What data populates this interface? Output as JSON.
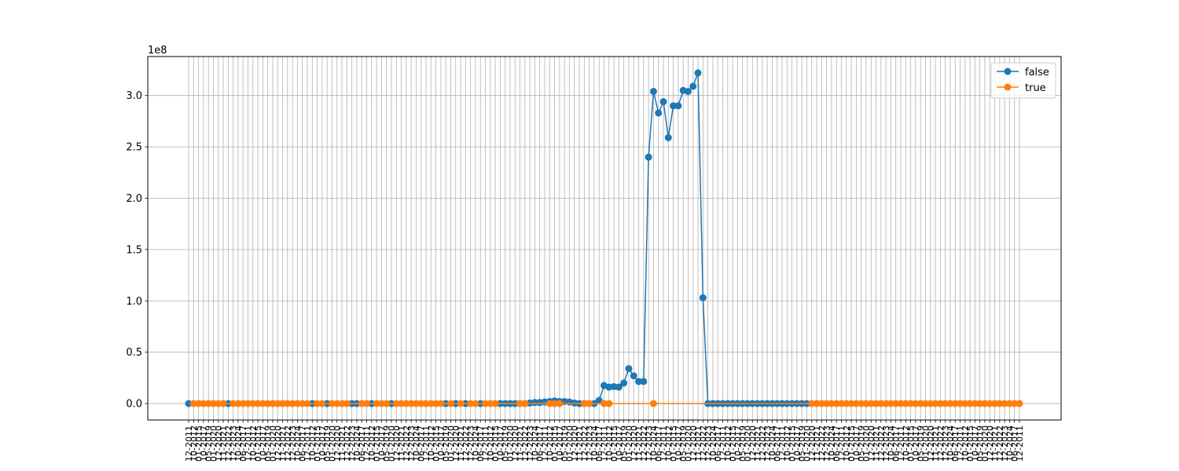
{
  "chart_data": {
    "type": "line",
    "title": "",
    "xlabel": "",
    "ylabel": "",
    "y_scale_label": "1e8",
    "y_scale": 100000000,
    "ylim": [
      -0.16,
      3.38
    ],
    "yticks": [
      0.0,
      0.5,
      1.0,
      1.5,
      2.0,
      2.5,
      3.0
    ],
    "ytick_labels": [
      "0.0",
      "0.5",
      "1.0",
      "1.5",
      "2.0",
      "2.5",
      "3.0"
    ],
    "grid": true,
    "legend_position": "top-right",
    "x_tick_count": 169,
    "x_label_samples": [
      "12-2011",
      "10-2012",
      "01-2015",
      "10-2017",
      "05-2019",
      "01-2020",
      "12-2020",
      "11-2021",
      "12-2022",
      "12-2023",
      "10-2024",
      "06-2017"
    ],
    "series": [
      {
        "name": "false",
        "color": "#1f77b4",
        "points": [
          [
            0,
            0.0
          ],
          [
            8,
            0.0
          ],
          [
            25,
            0.0
          ],
          [
            28,
            0.0
          ],
          [
            33,
            0.0
          ],
          [
            34,
            0.0
          ],
          [
            37,
            0.0
          ],
          [
            41,
            0.0
          ],
          [
            52,
            0.0
          ],
          [
            54,
            0.0
          ],
          [
            56,
            0.0
          ],
          [
            59,
            0.0
          ],
          [
            63,
            0.0
          ],
          [
            64,
            0.0
          ],
          [
            65,
            0.0
          ],
          [
            66,
            0.0
          ],
          [
            67,
            0.0
          ],
          [
            68,
            0.0
          ],
          [
            69,
            0.005
          ],
          [
            70,
            0.01
          ],
          [
            71,
            0.01
          ],
          [
            72,
            0.015
          ],
          [
            73,
            0.02
          ],
          [
            74,
            0.025
          ],
          [
            75,
            0.02
          ],
          [
            76,
            0.02
          ],
          [
            77,
            0.015
          ],
          [
            78,
            0.005
          ],
          [
            79,
            0.0
          ],
          [
            80,
            0.0
          ],
          [
            81,
            0.0
          ],
          [
            82,
            0.0
          ],
          [
            83,
            0.03
          ],
          [
            84,
            0.175
          ],
          [
            85,
            0.16
          ],
          [
            86,
            0.165
          ],
          [
            87,
            0.16
          ],
          [
            88,
            0.2
          ],
          [
            89,
            0.34
          ],
          [
            90,
            0.27
          ],
          [
            91,
            0.215
          ],
          [
            92,
            0.215
          ],
          [
            93,
            2.4
          ],
          [
            94,
            3.04
          ],
          [
            95,
            2.83
          ],
          [
            96,
            2.94
          ],
          [
            97,
            2.59
          ],
          [
            98,
            2.9
          ],
          [
            99,
            2.9
          ],
          [
            100,
            3.05
          ],
          [
            101,
            3.04
          ],
          [
            102,
            3.09
          ],
          [
            103,
            3.22
          ],
          [
            104,
            1.03
          ],
          [
            105,
            0.0
          ],
          [
            106,
            0.0
          ],
          [
            107,
            0.0
          ],
          [
            108,
            0.0
          ],
          [
            109,
            0.0
          ],
          [
            110,
            0.0
          ],
          [
            111,
            0.0
          ],
          [
            112,
            0.0
          ],
          [
            113,
            0.0
          ],
          [
            114,
            0.0
          ],
          [
            115,
            0.0
          ],
          [
            116,
            0.0
          ],
          [
            117,
            0.0
          ],
          [
            118,
            0.0
          ],
          [
            119,
            0.0
          ],
          [
            120,
            0.0
          ],
          [
            121,
            0.0
          ],
          [
            122,
            0.0
          ],
          [
            123,
            0.0
          ],
          [
            124,
            0.0
          ],
          [
            125,
            0.0
          ]
        ]
      },
      {
        "name": "true",
        "color": "#ff7f0e",
        "points": [
          [
            1,
            0.0
          ],
          [
            2,
            0.0
          ],
          [
            3,
            0.0
          ],
          [
            4,
            0.0
          ],
          [
            5,
            0.0
          ],
          [
            6,
            0.0
          ],
          [
            7,
            0.0
          ],
          [
            9,
            0.0
          ],
          [
            10,
            0.0
          ],
          [
            11,
            0.0
          ],
          [
            12,
            0.0
          ],
          [
            13,
            0.0
          ],
          [
            14,
            0.0
          ],
          [
            15,
            0.0
          ],
          [
            16,
            0.0
          ],
          [
            17,
            0.0
          ],
          [
            18,
            0.0
          ],
          [
            19,
            0.0
          ],
          [
            20,
            0.0
          ],
          [
            21,
            0.0
          ],
          [
            22,
            0.0
          ],
          [
            23,
            0.0
          ],
          [
            24,
            0.0
          ],
          [
            26,
            0.0
          ],
          [
            27,
            0.0
          ],
          [
            29,
            0.0
          ],
          [
            30,
            0.0
          ],
          [
            31,
            0.0
          ],
          [
            32,
            0.0
          ],
          [
            35,
            0.0
          ],
          [
            36,
            0.0
          ],
          [
            38,
            0.0
          ],
          [
            39,
            0.0
          ],
          [
            40,
            0.0
          ],
          [
            42,
            0.0
          ],
          [
            43,
            0.0
          ],
          [
            44,
            0.0
          ],
          [
            45,
            0.0
          ],
          [
            46,
            0.0
          ],
          [
            47,
            0.0
          ],
          [
            48,
            0.0
          ],
          [
            49,
            0.0
          ],
          [
            50,
            0.0
          ],
          [
            51,
            0.0
          ],
          [
            53,
            0.0
          ],
          [
            55,
            0.0
          ],
          [
            57,
            0.0
          ],
          [
            58,
            0.0
          ],
          [
            60,
            0.0
          ],
          [
            61,
            0.0
          ],
          [
            62,
            0.0
          ],
          [
            67,
            0.0
          ],
          [
            68,
            0.0
          ],
          [
            73,
            0.0
          ],
          [
            74,
            0.0
          ],
          [
            75,
            0.0
          ],
          [
            80,
            0.0
          ],
          [
            81,
            0.0
          ],
          [
            84,
            0.0
          ],
          [
            85,
            0.0
          ],
          [
            94,
            0.0
          ],
          [
            126,
            0.0
          ],
          [
            127,
            0.0
          ],
          [
            128,
            0.0
          ],
          [
            129,
            0.0
          ],
          [
            130,
            0.0
          ],
          [
            131,
            0.0
          ],
          [
            132,
            0.0
          ],
          [
            133,
            0.0
          ],
          [
            134,
            0.0
          ],
          [
            135,
            0.0
          ],
          [
            136,
            0.0
          ],
          [
            137,
            0.0
          ],
          [
            138,
            0.0
          ],
          [
            139,
            0.0
          ],
          [
            140,
            0.0
          ],
          [
            141,
            0.0
          ],
          [
            142,
            0.0
          ],
          [
            143,
            0.0
          ],
          [
            144,
            0.0
          ],
          [
            145,
            0.0
          ],
          [
            146,
            0.0
          ],
          [
            147,
            0.0
          ],
          [
            148,
            0.0
          ],
          [
            149,
            0.0
          ],
          [
            150,
            0.0
          ],
          [
            151,
            0.0
          ],
          [
            152,
            0.0
          ],
          [
            153,
            0.0
          ],
          [
            154,
            0.0
          ],
          [
            155,
            0.0
          ],
          [
            156,
            0.0
          ],
          [
            157,
            0.0
          ],
          [
            158,
            0.0
          ],
          [
            159,
            0.0
          ],
          [
            160,
            0.0
          ],
          [
            161,
            0.0
          ],
          [
            162,
            0.0
          ],
          [
            163,
            0.0
          ],
          [
            164,
            0.0
          ],
          [
            165,
            0.0
          ],
          [
            166,
            0.0
          ],
          [
            167,
            0.0
          ],
          [
            168,
            0.0
          ]
        ]
      }
    ]
  }
}
